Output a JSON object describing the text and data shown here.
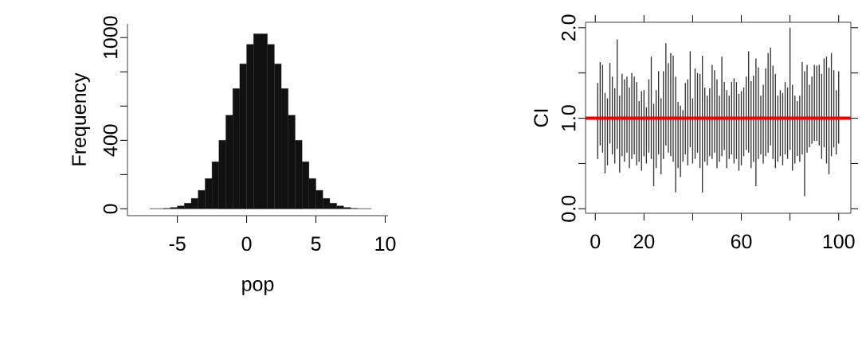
{
  "chart_data": [
    {
      "type": "histogram",
      "xlabel": "pop",
      "ylabel": "Frequency",
      "color": "#111111",
      "bins": [
        -8,
        -7.5,
        -7,
        -6.5,
        -6,
        -5.5,
        -5,
        -4.5,
        -4,
        -3.5,
        -3,
        -2.5,
        -2,
        -1.5,
        -1,
        -0.5,
        0,
        0.5,
        1,
        1.5,
        2,
        2.5,
        3,
        3.5,
        4,
        4.5,
        5,
        5.5,
        6,
        6.5,
        7,
        7.5,
        8,
        8.5,
        9,
        9.5,
        10
      ],
      "values": [
        0,
        0,
        1,
        1,
        3,
        8,
        17,
        33,
        61,
        108,
        177,
        275,
        400,
        547,
        702,
        847,
        960,
        1022,
        1022,
        960,
        847,
        702,
        547,
        400,
        275,
        177,
        108,
        61,
        33,
        17,
        8,
        3,
        1,
        1,
        0,
        0
      ],
      "xlim": [
        -8.6,
        10.2
      ],
      "ylim": [
        -40,
        1080
      ],
      "xticks": [
        -5,
        0,
        5,
        10
      ],
      "yticks": [
        0,
        {
          "value": 200,
          "label": null
        },
        400,
        {
          "value": 600,
          "label": null
        },
        {
          "value": 800,
          "label": null
        },
        1000
      ]
    },
    {
      "type": "bar",
      "ylabel": "CI",
      "color": "#333333",
      "x": [
        1,
        2,
        3,
        4,
        5,
        6,
        7,
        8,
        9,
        10,
        11,
        12,
        13,
        14,
        15,
        16,
        17,
        18,
        19,
        20,
        21,
        22,
        23,
        24,
        25,
        26,
        27,
        28,
        29,
        30,
        31,
        32,
        33,
        34,
        35,
        36,
        37,
        38,
        39,
        40,
        41,
        42,
        43,
        44,
        45,
        46,
        47,
        48,
        49,
        50,
        51,
        52,
        53,
        54,
        55,
        56,
        57,
        58,
        59,
        60,
        61,
        62,
        63,
        64,
        65,
        66,
        67,
        68,
        69,
        70,
        71,
        72,
        73,
        74,
        75,
        76,
        77,
        78,
        79,
        80,
        81,
        82,
        83,
        84,
        85,
        86,
        87,
        88,
        89,
        90,
        91,
        92,
        93,
        94,
        95,
        96,
        97,
        98,
        99,
        100
      ],
      "base": [
        0.55,
        0.7,
        0.62,
        0.39,
        0.48,
        0.72,
        0.6,
        0.5,
        0.66,
        0.4,
        0.58,
        0.52,
        0.62,
        0.45,
        0.55,
        0.6,
        0.48,
        0.52,
        0.42,
        0.58,
        0.5,
        0.62,
        0.55,
        0.25,
        0.45,
        0.6,
        0.38,
        0.55,
        0.7,
        0.62,
        0.58,
        0.52,
        0.18,
        0.45,
        0.35,
        0.52,
        0.6,
        0.48,
        0.68,
        0.5,
        0.55,
        0.62,
        0.45,
        0.18,
        0.52,
        0.48,
        0.58,
        0.55,
        0.62,
        0.45,
        0.52,
        0.58,
        0.65,
        0.45,
        0.55,
        0.6,
        0.5,
        0.55,
        0.42,
        0.48,
        0.58,
        0.65,
        0.62,
        0.45,
        0.52,
        0.25,
        0.55,
        0.6,
        0.5,
        0.58,
        0.62,
        0.7,
        0.55,
        0.45,
        0.52,
        0.58,
        0.48,
        0.6,
        0.55,
        0.65,
        0.42,
        0.5,
        0.58,
        0.52,
        0.6,
        0.14,
        0.62,
        0.68,
        0.72,
        0.75,
        0.75,
        0.7,
        0.55,
        0.68,
        0.5,
        0.38,
        0.58,
        0.68,
        0.6,
        0.72
      ],
      "values": [
        0.84,
        0.92,
        0.97,
        0.89,
        0.74,
        0.89,
        0.86,
        0.83,
        1.21,
        0.85,
        0.91,
        0.91,
        0.84,
        0.89,
        0.95,
        0.86,
        0.92,
        0.67,
        0.88,
        0.73,
        0.62,
        0.81,
        1.13,
        0.91,
        0.86,
        0.92,
        0.84,
        0.97,
        1.13,
        0.99,
        1.14,
        1.17,
        1.28,
        0.73,
        0.79,
        0.57,
        0.79,
        0.95,
        1.06,
        0.72,
        1.0,
        0.88,
        1.04,
        1.51,
        0.82,
        0.77,
        0.75,
        1.04,
        0.91,
        0.98,
        0.73,
        1.1,
        0.75,
        0.86,
        0.7,
        0.8,
        0.94,
        0.85,
        0.85,
        0.82,
        0.76,
        0.81,
        1.12,
        0.96,
        0.95,
        1.41,
        1.01,
        0.65,
        0.87,
        0.97,
        1.1,
        1.08,
        1.03,
        1.04,
        0.73,
        0.73,
        0.8,
        0.8,
        0.79,
        1.35,
        0.95,
        0.75,
        0.61,
        0.73,
        1.02,
        1.38,
        0.97,
        0.69,
        0.74,
        0.84,
        0.83,
        0.89,
        0.94,
        0.98,
        1.18,
        1.18,
        1.14,
        0.85,
        0.71,
        0.8
      ],
      "xlim": [
        -4,
        105
      ],
      "ylim": [
        -0.05,
        2.06
      ],
      "xticks": [
        0,
        20,
        {
          "value": 40,
          "label": null
        },
        60,
        {
          "value": 80,
          "label": null
        },
        100
      ],
      "yticks": [
        {
          "value": 0,
          "label": "0.0"
        },
        {
          "value": 0.5,
          "label": null
        },
        {
          "value": 1,
          "label": "1.0"
        },
        {
          "value": 1.5,
          "label": null
        },
        {
          "value": 2,
          "label": "2.0"
        }
      ],
      "ref_lines": [
        {
          "axis": "y",
          "value": 1,
          "color": "#ee0000"
        }
      ]
    }
  ]
}
